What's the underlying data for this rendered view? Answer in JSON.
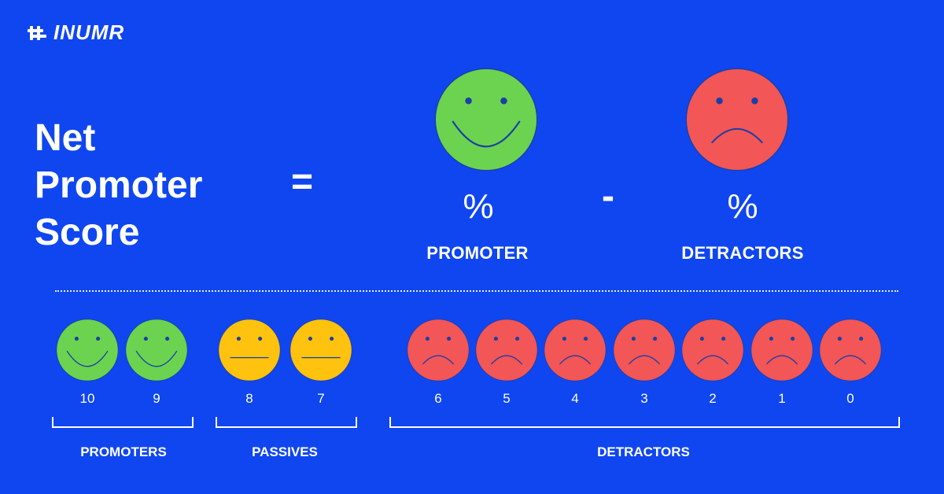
{
  "brand": {
    "name": "INUMR"
  },
  "formula": {
    "title": "Net\nPromoter\nScore",
    "equals": "=",
    "minus": "-",
    "left": {
      "symbol": "%",
      "label": "PROMOTER",
      "face": "happy",
      "color": "#6bd34f"
    },
    "right": {
      "symbol": "%",
      "label": "DETRACTORS",
      "face": "sad",
      "color": "#f25656"
    }
  },
  "scale": {
    "scores": [
      {
        "value": "10",
        "face": "happy",
        "color": "#6bd34f"
      },
      {
        "value": "9",
        "face": "happy",
        "color": "#6bd34f"
      },
      {
        "value": "8",
        "face": "neutral",
        "color": "#ffc20e"
      },
      {
        "value": "7",
        "face": "neutral",
        "color": "#ffc20e"
      },
      {
        "value": "6",
        "face": "sad",
        "color": "#f25656"
      },
      {
        "value": "5",
        "face": "sad",
        "color": "#f25656"
      },
      {
        "value": "4",
        "face": "sad",
        "color": "#f25656"
      },
      {
        "value": "3",
        "face": "sad",
        "color": "#f25656"
      },
      {
        "value": "2",
        "face": "sad",
        "color": "#f25656"
      },
      {
        "value": "1",
        "face": "sad",
        "color": "#f25656"
      },
      {
        "value": "0",
        "face": "sad",
        "color": "#f25656"
      }
    ],
    "groups": [
      {
        "label": "PROMOTERS"
      },
      {
        "label": "PASSIVES"
      },
      {
        "label": "DETRACTORS"
      }
    ]
  },
  "colors": {
    "background": "#0f46f0",
    "face_stroke": "#1b3fa6"
  }
}
